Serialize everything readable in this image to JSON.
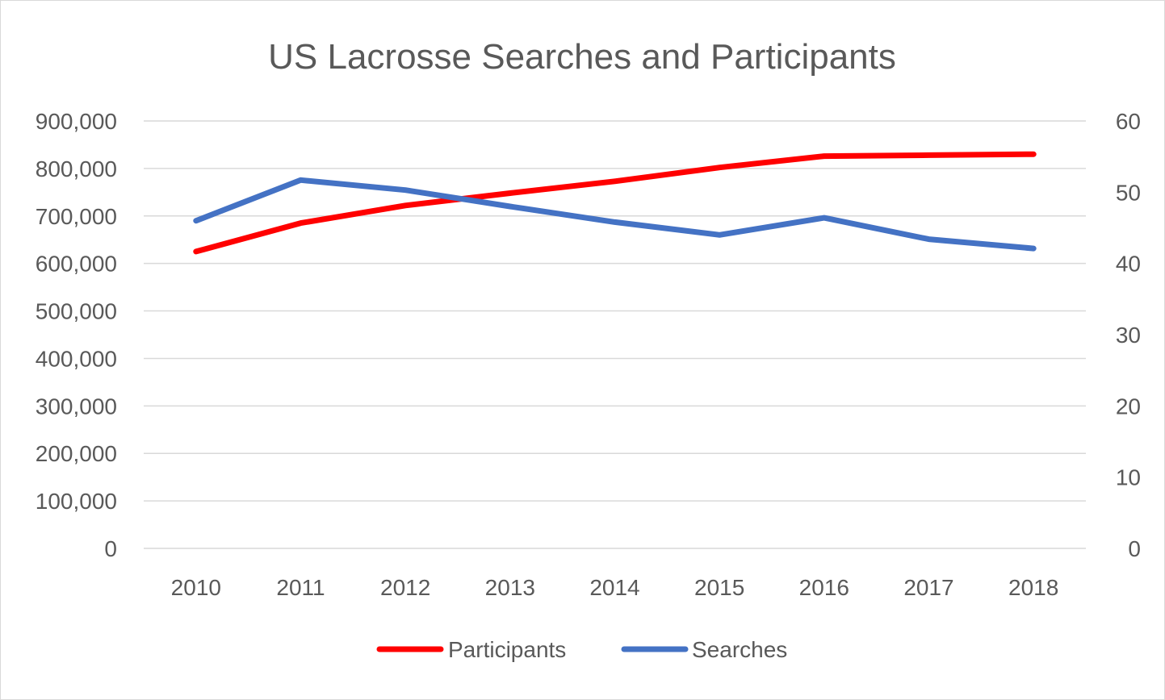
{
  "chart_data": {
    "type": "line",
    "title": "US Lacrosse Searches and Participants",
    "categories": [
      "2010",
      "2011",
      "2012",
      "2013",
      "2014",
      "2015",
      "2016",
      "2017",
      "2018"
    ],
    "y_left": {
      "range": [
        0,
        900000
      ],
      "ticks": [
        0,
        100000,
        200000,
        300000,
        400000,
        500000,
        600000,
        700000,
        800000,
        900000
      ],
      "tick_labels": [
        "0",
        "100,000",
        "200,000",
        "300,000",
        "400,000",
        "500,000",
        "600,000",
        "700,000",
        "800,000",
        "900,000"
      ]
    },
    "y_right": {
      "range": [
        0,
        60
      ],
      "ticks": [
        0,
        10,
        20,
        30,
        40,
        50,
        60
      ],
      "tick_labels": [
        "0",
        "10",
        "20",
        "30",
        "40",
        "50",
        "60"
      ]
    },
    "series": [
      {
        "name": "Participants",
        "axis": "left",
        "color": "#ff0000",
        "values": [
          625000,
          685000,
          722000,
          748000,
          773000,
          802000,
          826000,
          828000,
          830000
        ]
      },
      {
        "name": "Searches",
        "axis": "right",
        "color": "#4472c4",
        "values": [
          46,
          51.7,
          50.3,
          48,
          45.8,
          44,
          46.4,
          43.4,
          42.1
        ]
      }
    ],
    "grid": true,
    "legend": "bottom"
  }
}
